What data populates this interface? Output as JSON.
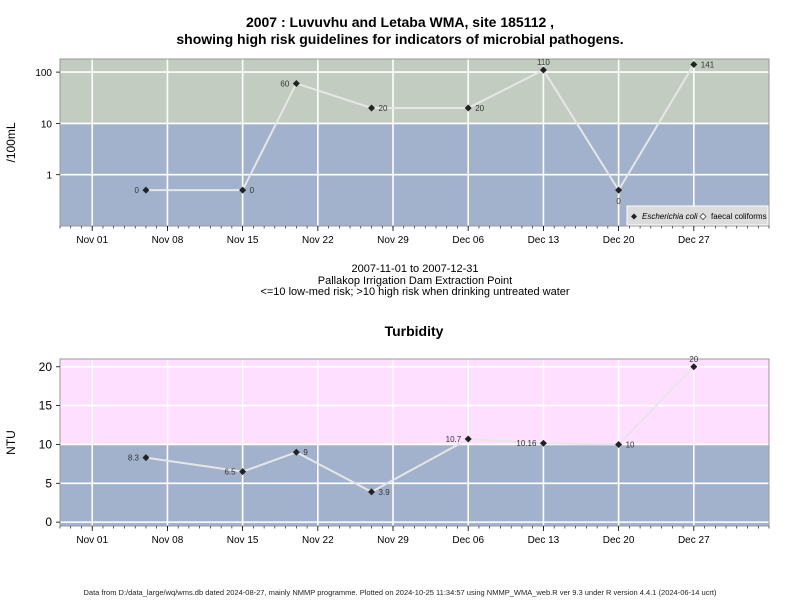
{
  "colors": {
    "high_risk_band": "#c2ccc0",
    "low_risk_band": "#a2b2cc",
    "turbidity_high_band": "#ffdfff",
    "turbidity_low_band": "#a2b2cc",
    "gridline": "#ffffff",
    "series_line": "#e6e6e6",
    "marker": "#222222",
    "frame": "#999999"
  },
  "footer": "Data from D:/data_large/wq/wms.db dated 2024-08-27, mainly NMMP programme. Plotted on 2024-10-25 11:34:57 using NMMP_WMA_web.R ver 9.3 under R version 4.4.1 (2024-06-14 ucrt)",
  "chart_data": [
    {
      "type": "line",
      "title_line1": "2007 : Luvuvhu and Letaba WMA, site 185112 ,",
      "title_line2": "showing high risk guidelines for indicators of microbial pathogens.",
      "ylabel": "/100mL",
      "xlabel_lines": [
        "2007-11-01 to 2007-12-31",
        "Pallakop Irrigation Dam Extraction Point",
        "<=10 low-med risk; >10 high risk when drinking untreated water"
      ],
      "y_scale": "log10",
      "ylim": [
        0.1,
        180
      ],
      "yticks": [
        1,
        10,
        100
      ],
      "ytick_labels": [
        "1",
        "10",
        "100"
      ],
      "xlim": [
        "2007-10-29",
        "2008-01-03"
      ],
      "xticks": [
        "2007-11-01",
        "2007-11-08",
        "2007-11-15",
        "2007-11-22",
        "2007-11-29",
        "2007-12-06",
        "2007-12-13",
        "2007-12-20",
        "2007-12-27"
      ],
      "xtick_labels": [
        "Nov 01",
        "Nov 08",
        "Nov 15",
        "Nov 22",
        "Nov 29",
        "Dec 06",
        "Dec 13",
        "Dec 20",
        "Dec 27"
      ],
      "risk_threshold": 10,
      "grid": true,
      "legend_position": "bottom-right",
      "series": [
        {
          "name": "Escherichia coli",
          "marker": "filled-diamond",
          "points": [
            {
              "x": "2007-11-06",
              "y": 0.5,
              "label": "0",
              "label_pos": "left"
            },
            {
              "x": "2007-11-15",
              "y": 0.5,
              "label": "0",
              "label_pos": "right"
            },
            {
              "x": "2007-11-20",
              "y": 60,
              "label": "60",
              "label_pos": "left"
            },
            {
              "x": "2007-11-27",
              "y": 20,
              "label": "20",
              "label_pos": "right"
            },
            {
              "x": "2007-12-06",
              "y": 20,
              "label": "20",
              "label_pos": "right"
            },
            {
              "x": "2007-12-13",
              "y": 110,
              "label": "110",
              "label_pos": "above"
            },
            {
              "x": "2007-12-20",
              "y": 0.5,
              "label": "0",
              "label_pos": "below"
            },
            {
              "x": "2007-12-27",
              "y": 141,
              "label": "141",
              "label_pos": "right"
            }
          ]
        },
        {
          "name": "faecal coliforms",
          "marker": "open-diamond",
          "points": []
        }
      ]
    },
    {
      "type": "line",
      "title": "Turbidity",
      "ylabel": "NTU",
      "ylim": [
        -0.5,
        21
      ],
      "yticks": [
        0,
        5,
        10,
        15,
        20
      ],
      "ytick_labels": [
        "0",
        "5",
        "10",
        "15",
        "20"
      ],
      "xlim": [
        "2007-10-29",
        "2008-01-03"
      ],
      "xticks": [
        "2007-11-01",
        "2007-11-08",
        "2007-11-15",
        "2007-11-22",
        "2007-11-29",
        "2007-12-06",
        "2007-12-13",
        "2007-12-20",
        "2007-12-27"
      ],
      "xtick_labels": [
        "Nov 01",
        "Nov 08",
        "Nov 15",
        "Nov 22",
        "Nov 29",
        "Dec 06",
        "Dec 13",
        "Dec 20",
        "Dec 27"
      ],
      "risk_threshold": 10,
      "grid": true,
      "series": [
        {
          "name": "",
          "marker": "filled-diamond",
          "points": [
            {
              "x": "2007-11-06",
              "y": 8.3,
              "label": "8.3",
              "label_pos": "left"
            },
            {
              "x": "2007-11-15",
              "y": 6.5,
              "label": "6.5",
              "label_pos": "left"
            },
            {
              "x": "2007-11-20",
              "y": 9,
              "label": "9",
              "label_pos": "right"
            },
            {
              "x": "2007-11-27",
              "y": 3.9,
              "label": "3.9",
              "label_pos": "right"
            },
            {
              "x": "2007-12-06",
              "y": 10.7,
              "label": "10.7",
              "label_pos": "left"
            },
            {
              "x": "2007-12-13",
              "y": 10.16,
              "label": "10.16",
              "label_pos": "left"
            },
            {
              "x": "2007-12-20",
              "y": 10,
              "label": "10",
              "label_pos": "right"
            },
            {
              "x": "2007-12-27",
              "y": 20,
              "label": "20",
              "label_pos": "above"
            }
          ]
        }
      ]
    }
  ]
}
